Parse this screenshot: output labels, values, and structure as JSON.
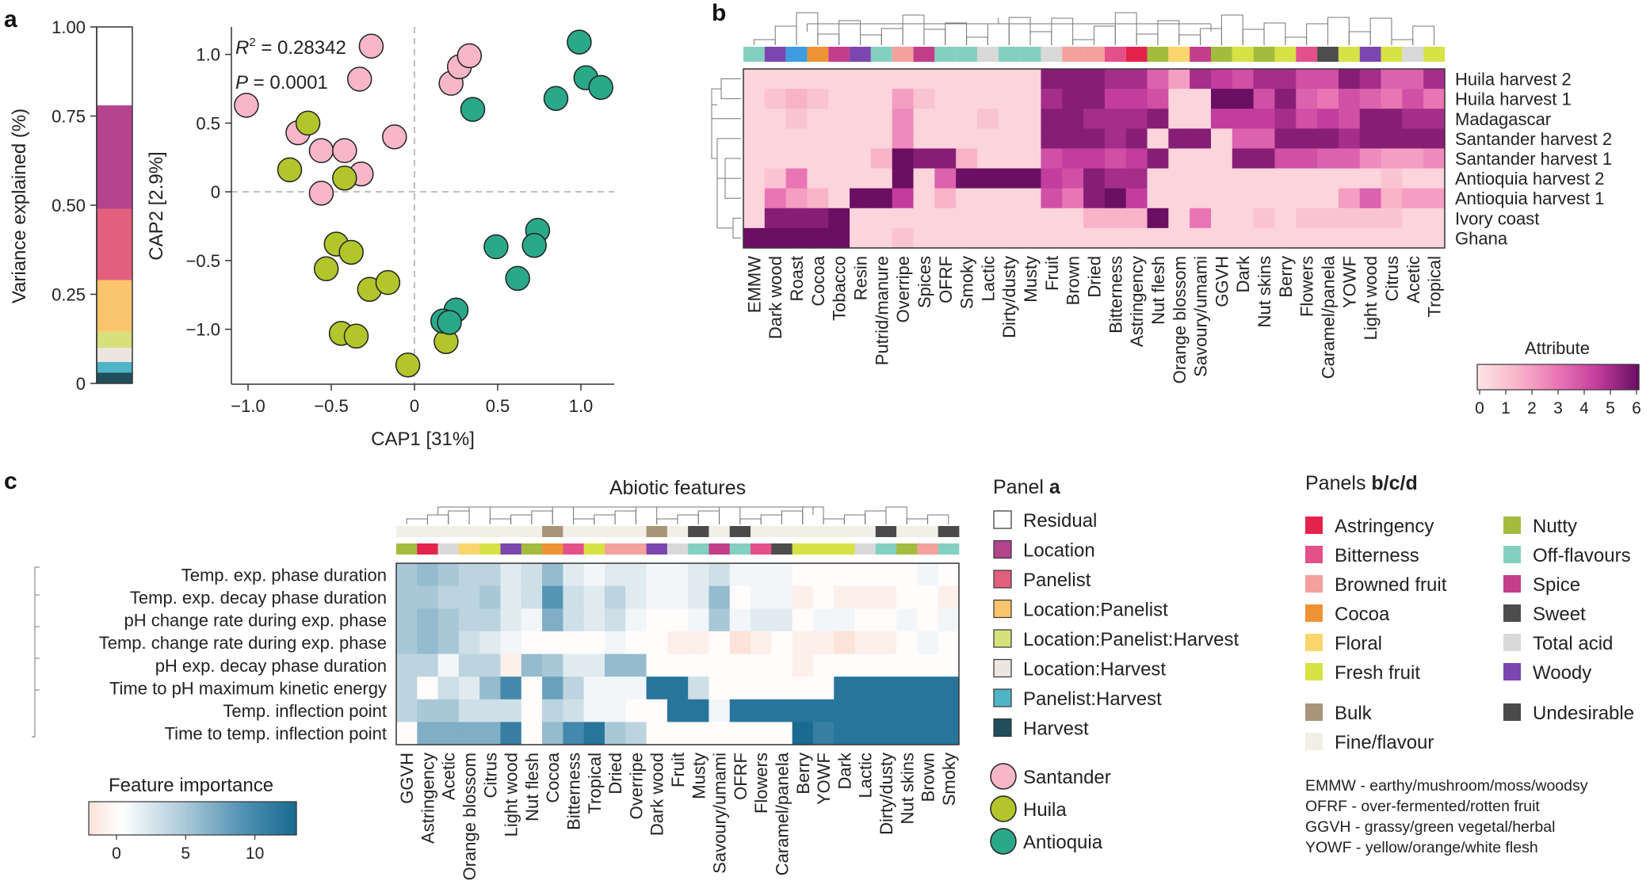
{
  "colors": {
    "santander": "#f7b7c8",
    "huila": "#b2c52b",
    "antioquia": "#2aa88a",
    "Astringency": "#e4234d",
    "Bitterness": "#e3508a",
    "Browned fruit": "#f4a09c",
    "Cocoa": "#ee9334",
    "Floral": "#f9d56b",
    "Fresh fruit": "#d7e244",
    "Nutty": "#a4bc3e",
    "Off-flavours": "#84d0c0",
    "Spice": "#c33e8a",
    "Sweet": "#4d4d4d",
    "Total acid": "#d9d9d9",
    "Woody": "#7b46b0",
    "Bulk": "#a89579",
    "Fine/flavour": "#f1efe6",
    "Undesirable": "#4a4a4a",
    "Residual": "#ffffff",
    "Location": "#b5448f",
    "Panelist": "#e35f7e",
    "Location:Panelist": "#f9c46b",
    "Location:Panelist:Harvest": "#d6e17b",
    "Location:Harvest": "#ece5e0",
    "Panelist:Harvest": "#4fb5c6",
    "Harvest": "#1f4f5a",
    "extra": "#3d9de0"
  },
  "chart_data": [
    {
      "panel": "a",
      "panel_letter": "a",
      "type": "bar",
      "subtype": "stacked-single",
      "ylabel": "Variance explained (%)",
      "ylim": [
        0,
        1
      ],
      "yticks": [
        "0",
        "0.25",
        "0.50",
        "0.75",
        "1.00"
      ],
      "segments": [
        {
          "name": "Harvest",
          "value": 0.03
        },
        {
          "name": "Panelist:Harvest",
          "value": 0.03
        },
        {
          "name": "Location:Harvest",
          "value": 0.04
        },
        {
          "name": "Location:Panelist:Harvest",
          "value": 0.045
        },
        {
          "name": "Location:Panelist",
          "value": 0.145
        },
        {
          "name": "Panelist",
          "value": 0.2
        },
        {
          "name": "Location",
          "value": 0.29
        },
        {
          "name": "Residual",
          "value": 0.21
        }
      ]
    },
    {
      "panel": "a-scatter",
      "type": "scatter",
      "xlabel": "CAP1 [31%]",
      "ylabel": "CAP2 [2.9%]",
      "xlim": [
        -1.1,
        1.2
      ],
      "ylim": [
        -1.4,
        1.2
      ],
      "xticks": [
        "−1.0",
        "−0.5",
        "0",
        "0.5",
        "1.0"
      ],
      "yticks": [
        "−1.0",
        "−0.5",
        "0",
        "0.5",
        "1.0"
      ],
      "r2_label": "R² = 0.28342",
      "r2_prefix": "R",
      "r2_sup": "2",
      "r2_value": " = 0.28342",
      "p_label": "P",
      "p_value": " = 0.0001",
      "series": [
        {
          "name": "Santander",
          "points": [
            [
              -1.01,
              0.63
            ],
            [
              -0.7,
              0.43
            ],
            [
              -0.56,
              0.3
            ],
            [
              -0.42,
              0.3
            ],
            [
              -0.56,
              -0.01
            ],
            [
              -0.32,
              0.13
            ],
            [
              -0.33,
              0.82
            ],
            [
              -0.26,
              1.06
            ],
            [
              -0.12,
              0.4
            ],
            [
              0.22,
              0.79
            ],
            [
              0.27,
              0.91
            ],
            [
              0.33,
              0.99
            ]
          ]
        },
        {
          "name": "Huila",
          "points": [
            [
              -0.64,
              0.5
            ],
            [
              -0.75,
              0.16
            ],
            [
              -0.42,
              0.1
            ],
            [
              -0.47,
              -0.38
            ],
            [
              -0.53,
              -0.56
            ],
            [
              -0.38,
              -0.44
            ],
            [
              -0.27,
              -0.71
            ],
            [
              -0.16,
              -0.66
            ],
            [
              -0.44,
              -1.03
            ],
            [
              -0.35,
              -1.05
            ],
            [
              -0.04,
              -1.26
            ],
            [
              0.19,
              -1.09
            ]
          ]
        },
        {
          "name": "Antioquia",
          "points": [
            [
              0.99,
              1.09
            ],
            [
              1.03,
              0.83
            ],
            [
              1.12,
              0.76
            ],
            [
              0.85,
              0.68
            ],
            [
              0.35,
              0.6
            ],
            [
              0.49,
              -0.4
            ],
            [
              0.74,
              -0.28
            ],
            [
              0.72,
              -0.39
            ],
            [
              0.62,
              -0.63
            ],
            [
              0.25,
              -0.86
            ],
            [
              0.17,
              -0.94
            ],
            [
              0.21,
              -0.95
            ]
          ]
        }
      ]
    },
    {
      "panel": "b",
      "panel_letter": "b",
      "type": "heatmap",
      "colorbar_title": "Attribute",
      "colorbar_ticks": [
        "0",
        "1",
        "2",
        "3",
        "4",
        "5",
        "6"
      ],
      "rows": [
        "Huila harvest 2",
        "Huila harvest 1",
        "Madagascar",
        "Santander harvest 2",
        "Santander harvest 1",
        "Antioquia harvest 2",
        "Antioquia harvest 1",
        "Ivory coast",
        "Ghana"
      ],
      "columns": [
        "EMMW",
        "Dark wood",
        "Roast",
        "Cocoa",
        "Tobacco",
        "Resin",
        "Putrid/manure",
        "Overripe",
        "Spices",
        "OFRF",
        "Smoky",
        "Lactic",
        "Dirty/dusty",
        "Musty",
        "Fruit",
        "Brown",
        "Dried",
        "Bitterness",
        "Astringency",
        "Nut flesh",
        "Orange blossom",
        "Savoury/umami",
        "GGVH",
        "Dark",
        "Nut skins",
        "Berry",
        "Flowers",
        "Caramel/panela",
        "YOWF",
        "Light wood",
        "Citrus",
        "Acetic",
        "Tropical"
      ],
      "column_group_colors": [
        "Off-flavours",
        "Woody",
        "extra",
        "Cocoa",
        "Spice",
        "Woody",
        "Off-flavours",
        "Browned fruit",
        "Spice",
        "Off-flavours",
        "Off-flavours",
        "Total acid",
        "Off-flavours",
        "Off-flavours",
        "Total acid",
        "Browned fruit",
        "Browned fruit",
        "Bitterness",
        "Astringency",
        "Nutty",
        "Floral",
        "Spice",
        "Nutty",
        "Fresh fruit",
        "Nutty",
        "Fresh fruit",
        "Bitterness",
        "Sweet",
        "Fresh fruit",
        "Woody",
        "Fresh fruit",
        "Total acid",
        "Fresh fruit"
      ],
      "values": [
        [
          0.5,
          0.5,
          0.5,
          0.5,
          0.5,
          0.5,
          0.5,
          0.5,
          0.5,
          0.5,
          0.5,
          0.5,
          0.5,
          0.5,
          5.5,
          5.5,
          5.5,
          5.0,
          5.0,
          3.5,
          2.0,
          5.0,
          4.5,
          4.0,
          5.0,
          5.0,
          4.0,
          4.0,
          5.5,
          5.0,
          3.5,
          3.5,
          5.0
        ],
        [
          0.5,
          1.0,
          1.5,
          1.0,
          0.5,
          0.5,
          0.5,
          2.0,
          1.0,
          0.5,
          0.5,
          0.5,
          0.5,
          0.5,
          5.0,
          5.5,
          5.5,
          4.5,
          4.5,
          4.0,
          0.5,
          0.5,
          6.0,
          6.0,
          4.0,
          5.5,
          3.5,
          3.0,
          4.0,
          3.5,
          3.0,
          4.0,
          3.0
        ],
        [
          0.5,
          0.5,
          1.0,
          0.5,
          0.5,
          0.5,
          0.5,
          2.5,
          0.5,
          0.5,
          0.5,
          1.0,
          0.5,
          0.5,
          5.5,
          5.5,
          5.0,
          5.0,
          5.0,
          5.5,
          0.5,
          0.5,
          4.5,
          4.5,
          4.5,
          5.0,
          4.0,
          4.5,
          4.0,
          5.5,
          5.5,
          5.0,
          5.0
        ],
        [
          0.5,
          0.5,
          0.5,
          0.5,
          0.5,
          0.5,
          0.5,
          2.5,
          0.5,
          0.5,
          0.5,
          0.5,
          0.5,
          0.5,
          5.5,
          5.5,
          5.5,
          5.0,
          5.5,
          0.5,
          5.5,
          5.5,
          0.5,
          3.5,
          3.5,
          5.5,
          5.5,
          5.5,
          5.0,
          5.5,
          5.5,
          5.5,
          5.5
        ],
        [
          0.5,
          0.5,
          0.5,
          0.5,
          0.5,
          0.5,
          1.5,
          6.0,
          5.5,
          5.5,
          1.5,
          0.5,
          0.5,
          0.5,
          4.0,
          4.5,
          4.5,
          4.0,
          4.5,
          5.5,
          0.5,
          0.5,
          0.5,
          5.5,
          5.5,
          4.0,
          4.0,
          3.5,
          3.5,
          2.5,
          2.0,
          2.0,
          2.5
        ],
        [
          0.5,
          1.0,
          3.0,
          0.5,
          0.5,
          0.5,
          0.5,
          6.0,
          0.5,
          3.5,
          6.0,
          6.0,
          6.0,
          6.0,
          4.5,
          4.0,
          5.5,
          5.0,
          5.0,
          0.5,
          0.5,
          0.5,
          0.5,
          0.5,
          0.5,
          0.5,
          0.5,
          0.5,
          0.5,
          0.5,
          1.0,
          0.5,
          0.5
        ],
        [
          0.5,
          3.0,
          2.0,
          1.5,
          0.5,
          6.0,
          6.0,
          4.5,
          0.5,
          1.5,
          0.5,
          0.5,
          0.5,
          0.5,
          4.0,
          3.0,
          5.5,
          6.0,
          4.5,
          0.5,
          0.5,
          0.5,
          0.5,
          0.5,
          0.5,
          0.5,
          0.5,
          0.5,
          2.0,
          3.5,
          1.5,
          2.0,
          2.0
        ],
        [
          0.5,
          5.5,
          5.5,
          5.5,
          6.0,
          0.5,
          0.5,
          0.5,
          0.5,
          0.5,
          0.5,
          0.5,
          0.5,
          0.5,
          0.5,
          0.5,
          1.5,
          1.5,
          1.5,
          6.0,
          0.5,
          3.0,
          0.5,
          0.5,
          1.0,
          0.5,
          1.0,
          1.0,
          1.0,
          1.0,
          1.0,
          0.5,
          0.5
        ],
        [
          6.0,
          6.0,
          6.0,
          6.0,
          6.0,
          0.5,
          0.5,
          1.0,
          0.5,
          0.5,
          0.5,
          0.5,
          0.5,
          0.5,
          0.5,
          0.5,
          0.5,
          0.5,
          0.5,
          0.5,
          0.5,
          0.5,
          0.5,
          0.5,
          0.5,
          0.5,
          0.5,
          0.5,
          0.5,
          0.5,
          0.5,
          0.5,
          0.5
        ]
      ]
    },
    {
      "panel": "c",
      "panel_letter": "c",
      "type": "heatmap",
      "title": "Abiotic features",
      "colorbar_title": "Feature importance",
      "colorbar_ticks": [
        "0",
        "5",
        "10"
      ],
      "rows": [
        "Temp. exp. phase duration",
        "Temp. exp. decay phase duration",
        "pH change rate during exp. phase",
        "Temp. change rate during exp. phase",
        "pH exp. decay phase duration",
        "Time to pH maximum kinetic energy",
        "Temp. inflection point",
        "Time to temp. inflection point"
      ],
      "columns": [
        "GGVH",
        "Astringency",
        "Acetic",
        "Orange blossom",
        "Citrus",
        "Light wood",
        "Nut flesh",
        "Cocoa",
        "Bitterness",
        "Tropical",
        "Dried",
        "Overripe",
        "Dark wood",
        "Fruit",
        "Musty",
        "Savoury/umami",
        "OFRF",
        "Flowers",
        "Caramel/panela",
        "Berry",
        "YOWF",
        "Dark",
        "Lactic",
        "Dirty/dusty",
        "Nut skins",
        "Brown",
        "Smoky"
      ],
      "quality_row": [
        "Fine/flavour",
        "Fine/flavour",
        "Fine/flavour",
        "Fine/flavour",
        "Fine/flavour",
        "Fine/flavour",
        "Fine/flavour",
        "Bulk",
        "Fine/flavour",
        "Fine/flavour",
        "Fine/flavour",
        "Fine/flavour",
        "Bulk",
        "Fine/flavour",
        "Undesirable",
        "Fine/flavour",
        "Undesirable",
        "Fine/flavour",
        "Fine/flavour",
        "Fine/flavour",
        "Fine/flavour",
        "Fine/flavour",
        "Fine/flavour",
        "Undesirable",
        "Fine/flavour",
        "Fine/flavour",
        "Undesirable"
      ],
      "category_row": [
        "Nutty",
        "Astringency",
        "Total acid",
        "Floral",
        "Fresh fruit",
        "Woody",
        "Nutty",
        "Cocoa",
        "Bitterness",
        "Fresh fruit",
        "Browned fruit",
        "Browned fruit",
        "Woody",
        "Total acid",
        "Off-flavours",
        "Spice",
        "Off-flavours",
        "Bitterness",
        "Sweet",
        "Fresh fruit",
        "Fresh fruit",
        "Fresh fruit",
        "Total acid",
        "Off-flavours",
        "Nutty",
        "Browned fruit",
        "Off-flavours"
      ],
      "values": [
        [
          5,
          6,
          5,
          4,
          4,
          2,
          3,
          6,
          2,
          1,
          2,
          2,
          1,
          1,
          2,
          3,
          1,
          1,
          1,
          0,
          0,
          0,
          0,
          0,
          0,
          1,
          0
        ],
        [
          5,
          5,
          4,
          4,
          5,
          2,
          3,
          9,
          3,
          2,
          4,
          2,
          1,
          1,
          2,
          6,
          0,
          1,
          1,
          -1,
          0,
          -1,
          -1,
          -1,
          0,
          0,
          -1
        ],
        [
          5,
          6,
          5,
          4,
          4,
          2,
          1,
          7,
          3,
          2,
          3,
          1,
          0,
          0,
          1,
          5,
          1,
          2,
          2,
          0,
          1,
          1,
          0,
          0,
          1,
          0,
          1
        ],
        [
          5,
          6,
          5,
          3,
          2,
          1,
          0,
          0,
          0,
          0,
          1,
          0,
          0,
          -1,
          -1,
          0,
          -2,
          -1,
          0,
          -1,
          -1,
          -2,
          -1,
          -1,
          0,
          1,
          0
        ],
        [
          4,
          4,
          1,
          4,
          4,
          -1,
          6,
          5,
          2,
          2,
          6,
          6,
          0,
          0,
          0,
          0,
          0,
          0,
          0,
          -1,
          0,
          0,
          0,
          0,
          0,
          0,
          0
        ],
        [
          4,
          0,
          3,
          2,
          6,
          10,
          0,
          8,
          4,
          1,
          1,
          1,
          12,
          12,
          3,
          0,
          0,
          0,
          0,
          0,
          0,
          12,
          12,
          12,
          12,
          12,
          12
        ],
        [
          4,
          5,
          5,
          3,
          3,
          3,
          0,
          4,
          3,
          1,
          1,
          0,
          0,
          12,
          12,
          1,
          12,
          12,
          12,
          12,
          12,
          12,
          12,
          12,
          12,
          12,
          12
        ],
        [
          0,
          7,
          7,
          7,
          7,
          11,
          0,
          6,
          10,
          12,
          5,
          4,
          0,
          0,
          0,
          0,
          0,
          0,
          0,
          13,
          11,
          12,
          12,
          12,
          12,
          12,
          12
        ]
      ]
    }
  ],
  "legends": {
    "panel_a_title_prefix": "Panel ",
    "panel_a_title_bold": "a",
    "panel_a_items": [
      "Residual",
      "Location",
      "Panelist",
      "Location:Panelist",
      "Location:Panelist:Harvest",
      "Location:Harvest",
      "Panelist:Harvest",
      "Harvest"
    ],
    "regions": [
      "Santander",
      "Huila",
      "Antioquia"
    ],
    "panels_bcd_title_prefix": "Panels ",
    "panels_bcd_title_bold": "b/c/d",
    "bcd_col1": [
      "Astringency",
      "Bitterness",
      "Browned fruit",
      "Cocoa",
      "Floral",
      "Fresh fruit"
    ],
    "bcd_col2": [
      "Nutty",
      "Off-flavours",
      "Spice",
      "Sweet",
      "Total acid",
      "Woody"
    ],
    "bcd_col1b": [
      "Bulk",
      "Fine/flavour"
    ],
    "bcd_col2b": [
      "Undesirable"
    ],
    "abbreviations": [
      "EMMW - earthy/mushroom/moss/woodsy",
      "OFRF - over-fermented/rotten fruit",
      "GGVH - grassy/green vegetal/herbal",
      "YOWF - yellow/orange/white flesh"
    ]
  }
}
